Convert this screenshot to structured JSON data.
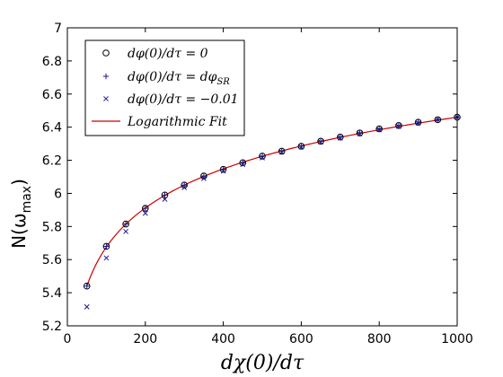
{
  "chart_data": {
    "type": "scatter",
    "xlabel": "dχ(0)/dτ",
    "ylabel_main": "N(ω",
    "ylabel_sub": "max",
    "ylabel_end": ")",
    "xlim": [
      0,
      1000
    ],
    "ylim": [
      5.2,
      7
    ],
    "xticks": [
      0,
      200,
      400,
      600,
      800,
      1000
    ],
    "yticks": [
      5.2,
      5.4,
      5.6,
      5.8,
      6,
      6.2,
      6.4,
      6.6,
      6.8,
      7
    ],
    "xtick_labels": [
      "0",
      "200",
      "400",
      "600",
      "800",
      "1000"
    ],
    "ytick_labels": [
      "5.2",
      "5.4",
      "5.6",
      "5.8",
      "6",
      "6.2",
      "6.4",
      "6.6",
      "6.8",
      "7"
    ],
    "legend_position": "top-left",
    "x": [
      50,
      100,
      150,
      200,
      250,
      300,
      350,
      400,
      450,
      500,
      550,
      600,
      650,
      700,
      750,
      800,
      850,
      900,
      950,
      1000
    ],
    "series": [
      {
        "name": "dφ(0)/dτ = 0",
        "marker": "circle",
        "color": "#000000",
        "values": [
          5.44,
          5.68,
          5.815,
          5.91,
          5.99,
          6.05,
          6.105,
          6.145,
          6.185,
          6.225,
          6.255,
          6.285,
          6.315,
          6.34,
          6.365,
          6.39,
          6.41,
          6.43,
          6.445,
          6.46
        ]
      },
      {
        "name": "dφ(0)/dτ = dφ",
        "name_sub": "SR",
        "marker": "plus",
        "color": "#1a1a8c",
        "values": [
          5.44,
          5.68,
          5.815,
          5.91,
          5.99,
          6.05,
          6.105,
          6.145,
          6.185,
          6.225,
          6.255,
          6.285,
          6.315,
          6.34,
          6.365,
          6.39,
          6.41,
          6.43,
          6.445,
          6.46
        ]
      },
      {
        "name": "dφ(0)/dτ = −0.01",
        "marker": "x",
        "color": "#1a1a8c",
        "values": [
          5.315,
          5.61,
          5.77,
          5.88,
          5.965,
          6.035,
          6.09,
          6.135,
          6.175,
          6.215,
          6.25,
          6.28,
          6.31,
          6.335,
          6.36,
          6.385,
          6.405,
          6.425,
          6.445,
          6.46
        ]
      }
    ],
    "fit": {
      "name": "Logarithmic Fit",
      "color": "#cc0000",
      "a": 5.44,
      "b": 0.3405,
      "x0": 50
    }
  }
}
